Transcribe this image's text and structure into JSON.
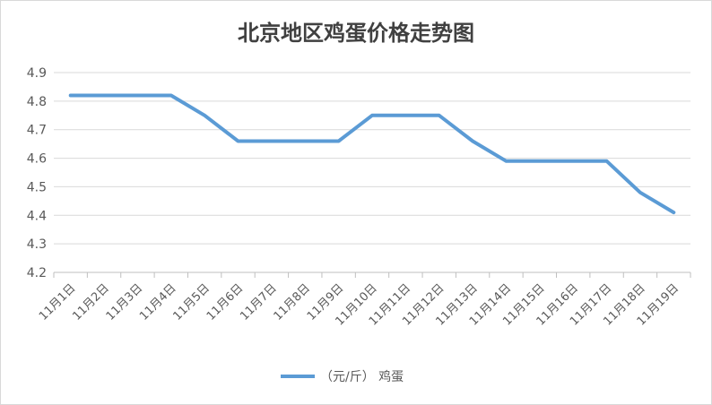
{
  "chart_data": {
    "type": "line",
    "title": "北京地区鸡蛋价格走势图",
    "xlabel": "",
    "ylabel": "",
    "categories": [
      "11月1日",
      "11月2日",
      "11月3日",
      "11月4日",
      "11月5日",
      "11月6日",
      "11月7日",
      "11月8日",
      "11月9日",
      "11月10日",
      "11月11日",
      "11月12日",
      "11月13日",
      "11月14日",
      "11月15日",
      "11月16日",
      "11月17日",
      "11月18日",
      "11月19日"
    ],
    "series": [
      {
        "name": "（元/斤） 鸡蛋",
        "values": [
          4.82,
          4.82,
          4.82,
          4.82,
          4.75,
          4.66,
          4.66,
          4.66,
          4.66,
          4.75,
          4.75,
          4.75,
          4.66,
          4.59,
          4.59,
          4.59,
          4.59,
          4.48,
          4.41
        ],
        "color": "#5b9bd5"
      }
    ],
    "ylim": [
      4.2,
      4.9
    ],
    "yticks": [
      "4.2",
      "4.3",
      "4.4",
      "4.5",
      "4.6",
      "4.7",
      "4.8",
      "4.9"
    ],
    "grid": true,
    "legend": "bottom"
  }
}
